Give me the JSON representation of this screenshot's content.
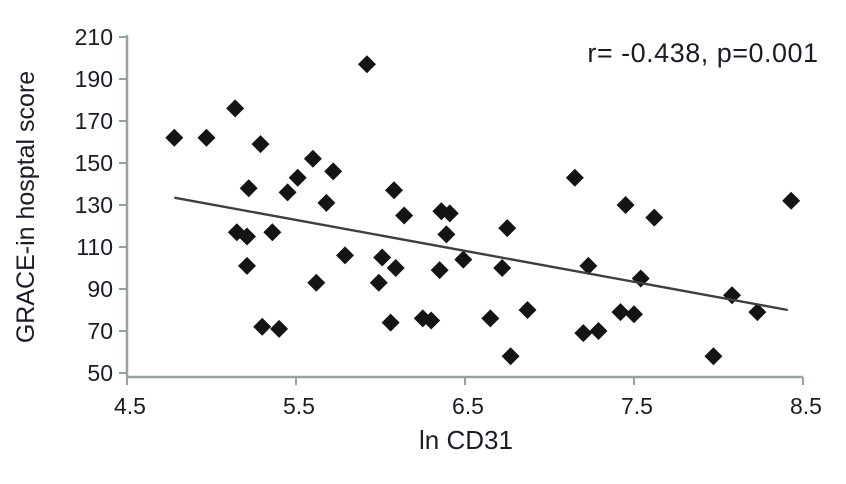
{
  "chart_data": {
    "type": "scatter",
    "annotation": "r= -0.438, p=0.001",
    "xlabel": "ln CD31",
    "ylabel": "GRACE-in hosptal score",
    "xlim": [
      4.5,
      8.5
    ],
    "ylim": [
      50,
      210
    ],
    "xticks": [
      "4.5",
      "5.5",
      "6.5",
      "7.5",
      "8.5"
    ],
    "xtick_values": [
      4.5,
      5.5,
      6.5,
      7.5,
      8.5
    ],
    "yticks": [
      "210",
      "190",
      "170",
      "150",
      "130",
      "110",
      "90",
      "70",
      "50"
    ],
    "ytick_values": [
      210,
      190,
      170,
      150,
      130,
      110,
      90,
      70,
      50
    ],
    "grid": false,
    "legend": "none",
    "marker": "diamond",
    "points": [
      [
        4.78,
        162
      ],
      [
        4.97,
        162
      ],
      [
        5.14,
        176
      ],
      [
        5.15,
        117
      ],
      [
        5.21,
        115
      ],
      [
        5.21,
        101
      ],
      [
        5.22,
        138
      ],
      [
        5.29,
        159
      ],
      [
        5.3,
        72
      ],
      [
        5.36,
        117
      ],
      [
        5.4,
        71
      ],
      [
        5.45,
        136
      ],
      [
        5.51,
        143
      ],
      [
        5.6,
        152
      ],
      [
        5.62,
        93
      ],
      [
        5.68,
        131
      ],
      [
        5.72,
        146
      ],
      [
        5.79,
        106
      ],
      [
        5.92,
        197
      ],
      [
        5.99,
        93
      ],
      [
        6.01,
        105
      ],
      [
        6.06,
        74
      ],
      [
        6.08,
        137
      ],
      [
        6.09,
        100
      ],
      [
        6.14,
        125
      ],
      [
        6.25,
        76
      ],
      [
        6.3,
        75
      ],
      [
        6.35,
        99
      ],
      [
        6.36,
        127
      ],
      [
        6.41,
        126
      ],
      [
        6.39,
        116
      ],
      [
        6.49,
        104
      ],
      [
        6.65,
        76
      ],
      [
        6.72,
        100
      ],
      [
        6.75,
        119
      ],
      [
        6.77,
        58
      ],
      [
        6.87,
        80
      ],
      [
        7.15,
        143
      ],
      [
        7.2,
        69
      ],
      [
        7.23,
        101
      ],
      [
        7.29,
        70
      ],
      [
        7.42,
        79
      ],
      [
        7.5,
        78
      ],
      [
        7.45,
        130
      ],
      [
        7.54,
        95
      ],
      [
        7.62,
        124
      ],
      [
        7.97,
        58
      ],
      [
        8.08,
        87
      ],
      [
        8.23,
        79
      ],
      [
        8.43,
        132
      ]
    ],
    "trendline": {
      "x1": 4.78,
      "y1": 133.5,
      "x2": 8.41,
      "y2": 80
    },
    "colors": {
      "marker": "#141414",
      "trendline": "#3f3f3f",
      "axis": "#97a3a1",
      "text": "#1c1c28",
      "background": "#ffffff"
    }
  }
}
